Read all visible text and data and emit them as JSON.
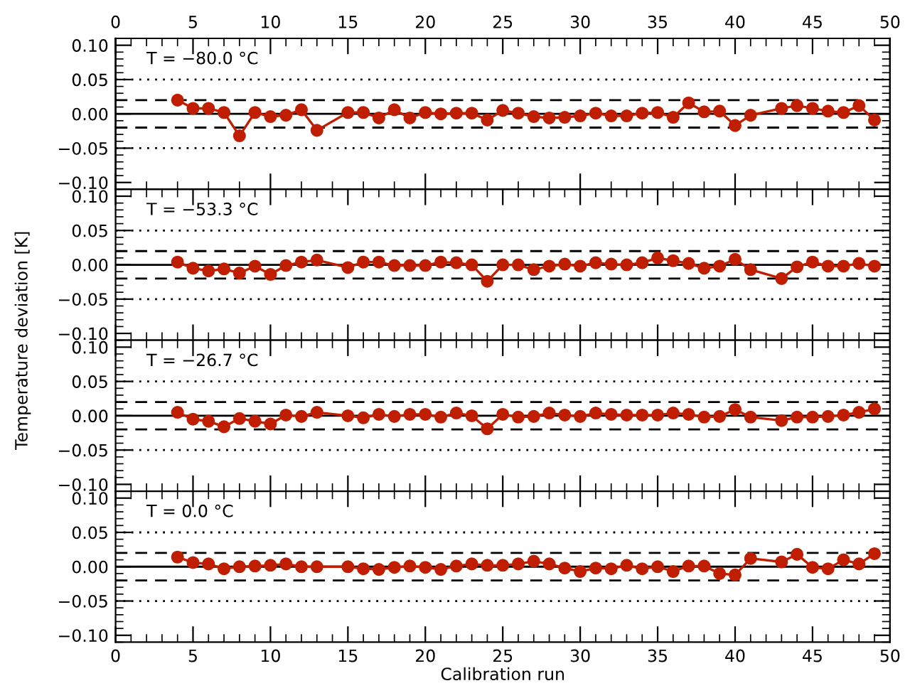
{
  "chart_data": [
    {
      "type": "line",
      "annotations": [
        "T = −80.0 °C"
      ],
      "ylabel": "Temperature deviation [K]",
      "marker": "circle",
      "line_style": "solid",
      "grid": false,
      "legend": false,
      "tick_labels": "y",
      "xlim": [
        0,
        50
      ],
      "x2lim": [
        0,
        50
      ],
      "x2ticks": [
        0,
        5,
        10,
        15,
        20,
        25,
        30,
        35,
        40,
        45,
        50
      ],
      "ylim": [
        -0.11,
        0.11
      ],
      "yticks": [
        {
          "value": -0.1,
          "label": "−0.10"
        },
        {
          "value": -0.05,
          "label": "−0.05"
        },
        {
          "value": 0,
          "label": "0.00"
        },
        {
          "value": 0.05,
          "label": "0.05"
        },
        {
          "value": 0.1,
          "label": "0.10"
        }
      ],
      "ref_lines": [
        {
          "axis": "y",
          "value": 0,
          "color": "#000000",
          "line_style": "solid"
        },
        {
          "axis": "y",
          "value": 0.02,
          "color": "#000000",
          "line_style": "dashed"
        },
        {
          "axis": "y",
          "value": -0.02,
          "color": "#000000",
          "line_style": "dashed"
        },
        {
          "axis": "y",
          "value": 0.05,
          "color": "#000000",
          "line_style": "dotted"
        },
        {
          "axis": "y",
          "value": -0.05,
          "color": "#000000",
          "line_style": "dotted"
        }
      ],
      "series": [
        {
          "color": "#c01e00",
          "x": [
            4,
            5,
            6,
            7,
            8,
            9,
            10,
            11,
            12,
            13,
            15,
            16,
            17,
            18,
            19,
            20,
            21,
            22,
            23,
            24,
            25,
            26,
            27,
            28,
            29,
            30,
            31,
            32,
            33,
            34,
            35,
            36,
            37,
            38,
            39,
            40,
            41,
            43,
            44,
            45,
            46,
            47,
            48,
            49
          ],
          "values": [
            0.02,
            0.008,
            0.008,
            0.002,
            -0.032,
            0.002,
            -0.004,
            -0.002,
            0.006,
            -0.024,
            0.002,
            0.002,
            -0.006,
            0.006,
            -0.006,
            0.002,
            0,
            0.001,
            0.001,
            -0.009,
            0.005,
            0.001,
            -0.004,
            -0.006,
            -0.005,
            -0.003,
            0.001,
            -0.003,
            -0.003,
            0.001,
            0.002,
            -0.005,
            0.016,
            0.003,
            0.004,
            -0.017,
            -0.002,
            0.008,
            0.012,
            0.008,
            0.004,
            0.002,
            0.012,
            -0.009
          ]
        }
      ]
    },
    {
      "type": "line",
      "annotations": [
        "T = −53.3 °C"
      ],
      "marker": "circle",
      "line_style": "solid",
      "grid": false,
      "legend": false,
      "tick_labels": "y",
      "xlim": [
        0,
        50
      ],
      "xticks": [
        {
          "value": 0,
          "label": null
        },
        {
          "value": 5,
          "label": null
        },
        {
          "value": 10,
          "label": null
        },
        {
          "value": 15,
          "label": null
        },
        {
          "value": 20,
          "label": null
        },
        {
          "value": 25,
          "label": null
        },
        {
          "value": 30,
          "label": null
        },
        {
          "value": 35,
          "label": null
        },
        {
          "value": 40,
          "label": null
        },
        {
          "value": 45,
          "label": null
        },
        {
          "value": 50,
          "label": null
        }
      ],
      "ylim": [
        -0.11,
        0.11
      ],
      "yticks": [
        {
          "value": -0.1,
          "label": "−0.10"
        },
        {
          "value": -0.05,
          "label": "−0.05"
        },
        {
          "value": 0,
          "label": "0.00"
        },
        {
          "value": 0.05,
          "label": "0.05"
        },
        {
          "value": 0.1,
          "label": "0.10"
        }
      ],
      "ref_lines": [
        {
          "axis": "y",
          "value": 0,
          "color": "#000000",
          "line_style": "solid"
        },
        {
          "axis": "y",
          "value": 0.02,
          "color": "#000000",
          "line_style": "dashed"
        },
        {
          "axis": "y",
          "value": -0.02,
          "color": "#000000",
          "line_style": "dashed"
        },
        {
          "axis": "y",
          "value": 0.05,
          "color": "#000000",
          "line_style": "dotted"
        },
        {
          "axis": "y",
          "value": -0.05,
          "color": "#000000",
          "line_style": "dotted"
        }
      ],
      "series": [
        {
          "color": "#c01e00",
          "x": [
            4,
            5,
            6,
            7,
            8,
            9,
            10,
            11,
            12,
            13,
            15,
            16,
            17,
            18,
            19,
            20,
            21,
            22,
            23,
            24,
            25,
            26,
            27,
            28,
            29,
            30,
            31,
            32,
            33,
            34,
            35,
            36,
            37,
            38,
            39,
            40,
            41,
            43,
            44,
            45,
            46,
            47,
            48,
            49
          ],
          "values": [
            0.004,
            -0.005,
            -0.009,
            -0.006,
            -0.012,
            -0.002,
            -0.014,
            -0.001,
            0.004,
            0.007,
            -0.004,
            0.004,
            0.004,
            -0.001,
            -0.001,
            -0.001,
            0.004,
            0.003,
            0,
            -0.024,
            0,
            0,
            -0.007,
            -0.002,
            0.001,
            -0.002,
            0.003,
            0.001,
            0,
            0.003,
            0.01,
            0.006,
            0.002,
            -0.005,
            -0.002,
            0.008,
            -0.007,
            -0.02,
            -0.003,
            0.004,
            -0.002,
            -0.002,
            0.002,
            -0.002
          ]
        }
      ]
    },
    {
      "type": "line",
      "annotations": [
        "T = −26.7 °C"
      ],
      "marker": "circle",
      "line_style": "solid",
      "grid": false,
      "legend": false,
      "tick_labels": "y",
      "xlim": [
        0,
        50
      ],
      "xticks": [
        {
          "value": 0,
          "label": null
        },
        {
          "value": 5,
          "label": null
        },
        {
          "value": 10,
          "label": null
        },
        {
          "value": 15,
          "label": null
        },
        {
          "value": 20,
          "label": null
        },
        {
          "value": 25,
          "label": null
        },
        {
          "value": 30,
          "label": null
        },
        {
          "value": 35,
          "label": null
        },
        {
          "value": 40,
          "label": null
        },
        {
          "value": 45,
          "label": null
        },
        {
          "value": 50,
          "label": null
        }
      ],
      "ylim": [
        -0.11,
        0.11
      ],
      "yticks": [
        {
          "value": -0.1,
          "label": "−0.10"
        },
        {
          "value": -0.05,
          "label": "−0.05"
        },
        {
          "value": 0,
          "label": "0.00"
        },
        {
          "value": 0.05,
          "label": "0.05"
        },
        {
          "value": 0.1,
          "label": "0.10"
        }
      ],
      "ref_lines": [
        {
          "axis": "y",
          "value": 0,
          "color": "#000000",
          "line_style": "solid"
        },
        {
          "axis": "y",
          "value": 0.02,
          "color": "#000000",
          "line_style": "dashed"
        },
        {
          "axis": "y",
          "value": -0.02,
          "color": "#000000",
          "line_style": "dashed"
        },
        {
          "axis": "y",
          "value": 0.05,
          "color": "#000000",
          "line_style": "dotted"
        },
        {
          "axis": "y",
          "value": -0.05,
          "color": "#000000",
          "line_style": "dotted"
        }
      ],
      "series": [
        {
          "color": "#c01e00",
          "x": [
            4,
            5,
            6,
            7,
            8,
            9,
            10,
            11,
            12,
            13,
            15,
            16,
            17,
            18,
            19,
            20,
            21,
            22,
            23,
            24,
            25,
            26,
            27,
            28,
            29,
            30,
            31,
            32,
            33,
            34,
            35,
            36,
            37,
            38,
            39,
            40,
            41,
            43,
            44,
            45,
            46,
            47,
            48,
            49
          ],
          "values": [
            0.005,
            -0.005,
            -0.008,
            -0.016,
            -0.004,
            -0.008,
            -0.012,
            0.001,
            -0.001,
            0.005,
            0,
            -0.003,
            0.002,
            -0.001,
            0.002,
            0.002,
            -0.002,
            0.004,
            0,
            -0.019,
            0.002,
            -0.002,
            -0.001,
            0.004,
            0.001,
            -0.001,
            0.004,
            0.002,
            0.001,
            0.001,
            0.001,
            0.004,
            0.002,
            -0.002,
            -0.001,
            0.009,
            -0.002,
            -0.007,
            -0.002,
            -0.002,
            -0.001,
            0.001,
            0.005,
            0.01
          ]
        }
      ]
    },
    {
      "type": "line",
      "annotations": [
        "T = 0.0 °C"
      ],
      "xlabel": "Calibration run",
      "marker": "circle",
      "line_style": "solid",
      "grid": false,
      "legend": false,
      "xlim": [
        0,
        50
      ],
      "xticks": [
        0,
        5,
        10,
        15,
        20,
        25,
        30,
        35,
        40,
        45,
        50
      ],
      "ylim": [
        -0.11,
        0.11
      ],
      "yticks": [
        {
          "value": -0.1,
          "label": "−0.10"
        },
        {
          "value": -0.05,
          "label": "−0.05"
        },
        {
          "value": 0,
          "label": "0.00"
        },
        {
          "value": 0.05,
          "label": "0.05"
        },
        {
          "value": 0.1,
          "label": "0.10"
        }
      ],
      "ref_lines": [
        {
          "axis": "y",
          "value": 0,
          "color": "#000000",
          "line_style": "solid"
        },
        {
          "axis": "y",
          "value": 0.02,
          "color": "#000000",
          "line_style": "dashed"
        },
        {
          "axis": "y",
          "value": -0.02,
          "color": "#000000",
          "line_style": "dashed"
        },
        {
          "axis": "y",
          "value": 0.05,
          "color": "#000000",
          "line_style": "dotted"
        },
        {
          "axis": "y",
          "value": -0.05,
          "color": "#000000",
          "line_style": "dotted"
        }
      ],
      "series": [
        {
          "color": "#c01e00",
          "x": [
            4,
            5,
            6,
            7,
            8,
            9,
            10,
            11,
            12,
            13,
            15,
            16,
            17,
            18,
            19,
            20,
            21,
            22,
            23,
            24,
            25,
            26,
            27,
            28,
            29,
            30,
            31,
            32,
            33,
            34,
            35,
            36,
            37,
            38,
            39,
            40,
            41,
            43,
            44,
            45,
            46,
            47,
            48,
            49
          ],
          "values": [
            0.014,
            0.006,
            0.004,
            -0.003,
            0,
            0.001,
            0.002,
            0.004,
            0,
            0,
            0,
            -0.003,
            -0.004,
            -0.001,
            0.001,
            -0.001,
            -0.004,
            0.001,
            0.004,
            0.002,
            0.002,
            0.004,
            0.008,
            0.004,
            -0.002,
            -0.007,
            -0.002,
            -0.003,
            0.002,
            -0.003,
            0,
            -0.007,
            0.001,
            0.001,
            -0.01,
            -0.012,
            0.012,
            0.007,
            0.018,
            -0.001,
            -0.003,
            0.01,
            0.004,
            0.019
          ]
        }
      ]
    }
  ]
}
